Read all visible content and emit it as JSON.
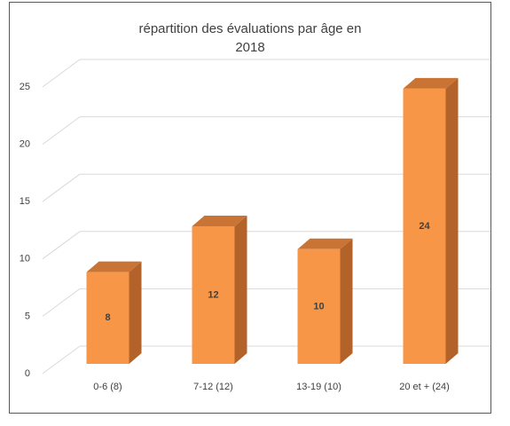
{
  "chart_data": {
    "type": "bar3d",
    "title": "répartition des évaluations par âge en 2018",
    "categories": [
      "0-6 (8)",
      "7-12 (12)",
      "13-19 (10)",
      "20 et + (24)"
    ],
    "values": [
      8,
      12,
      10,
      24
    ],
    "color": "#f79646",
    "ylim": [
      0,
      25
    ],
    "yticks": [
      0,
      5,
      10,
      15,
      20,
      25
    ],
    "grid": true
  }
}
